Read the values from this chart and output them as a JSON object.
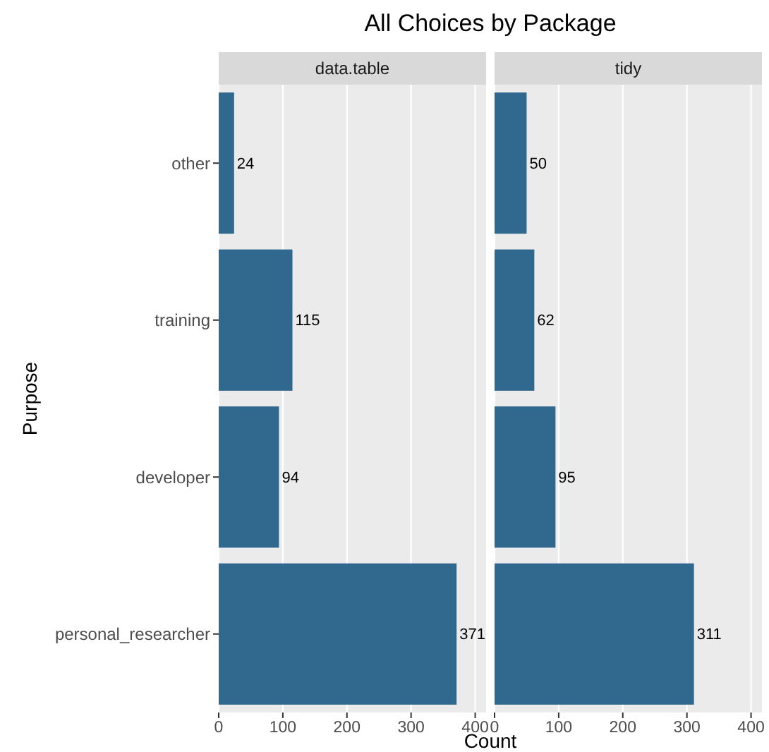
{
  "chart_data": [
    {
      "type": "bar",
      "orientation": "horizontal",
      "title": "All Choices by Package",
      "subtitle": "data.table",
      "xlabel": "Count",
      "ylabel": "Purpose",
      "categories": [
        "other",
        "training",
        "developer",
        "personal_researcher"
      ],
      "values": [
        24,
        115,
        94,
        371
      ],
      "color": "#31688e",
      "xlim": [
        0,
        417
      ],
      "xticks": [
        0,
        100,
        200,
        300,
        400
      ],
      "grid": "x",
      "data_labels": true
    },
    {
      "type": "bar",
      "orientation": "horizontal",
      "subtitle": "tidy",
      "categories": [
        null,
        null,
        null,
        null
      ],
      "values": [
        50,
        62,
        95,
        311
      ],
      "color": "#31688e",
      "xlim": [
        0,
        417
      ],
      "xticks": [
        0,
        100,
        200,
        300,
        400
      ],
      "grid": "x",
      "data_labels": true,
      "tick_labels": "x"
    }
  ]
}
